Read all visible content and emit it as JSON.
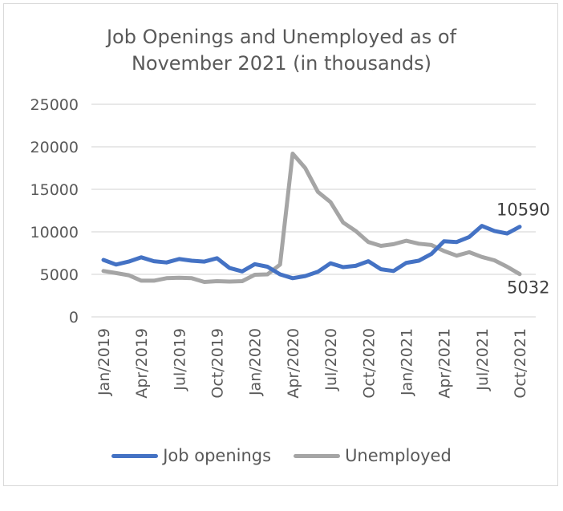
{
  "chart_data": {
    "type": "line",
    "title_line1": "Job Openings and Unemployed as of",
    "title_line2": "November 2021 (in thousands)",
    "xlabel": "",
    "ylabel": "",
    "ylim": [
      0,
      25000
    ],
    "yticks": [
      "0",
      "5000",
      "10000",
      "15000",
      "20000",
      "25000"
    ],
    "ytick_values": [
      0,
      5000,
      10000,
      15000,
      20000,
      25000
    ],
    "grid": true,
    "legend_position": "bottom",
    "x_tick_labels": [
      "Jan/2019",
      "Apr/2019",
      "Jul/2019",
      "Oct/2019",
      "Jan/2020",
      "Apr/2020",
      "Jul/2020",
      "Oct/2020",
      "Jan/2021",
      "Apr/2021",
      "Jul/2021",
      "Oct/2021"
    ],
    "x": [
      "Jan/2019",
      "Feb/2019",
      "Mar/2019",
      "Apr/2019",
      "May/2019",
      "Jun/2019",
      "Jul/2019",
      "Aug/2019",
      "Sep/2019",
      "Oct/2019",
      "Nov/2019",
      "Dec/2019",
      "Jan/2020",
      "Feb/2020",
      "Mar/2020",
      "Apr/2020",
      "May/2020",
      "Jun/2020",
      "Jul/2020",
      "Aug/2020",
      "Sep/2020",
      "Oct/2020",
      "Nov/2020",
      "Dec/2020",
      "Jan/2021",
      "Feb/2021",
      "Mar/2021",
      "Apr/2021",
      "May/2021",
      "Jun/2021",
      "Jul/2021",
      "Aug/2021",
      "Sep/2021",
      "Oct/2021"
    ],
    "series": [
      {
        "name": "Job openings",
        "color": "#4472c4",
        "values": [
          6700,
          6150,
          6500,
          7000,
          6550,
          6400,
          6800,
          6600,
          6500,
          6900,
          5750,
          5350,
          6200,
          5900,
          5000,
          4550,
          4800,
          5300,
          6300,
          5850,
          6000,
          6550,
          5600,
          5400,
          6350,
          6600,
          7400,
          8900,
          8800,
          9400,
          10700,
          10100,
          9800,
          10590
        ],
        "end_label": "10590"
      },
      {
        "name": "Unemployed",
        "color": "#a5a5a5",
        "values": [
          5400,
          5150,
          4900,
          4250,
          4250,
          4550,
          4600,
          4550,
          4100,
          4200,
          4150,
          4200,
          4950,
          5000,
          6150,
          19200,
          17500,
          14700,
          13500,
          11100,
          10100,
          8800,
          8350,
          8550,
          8950,
          8600,
          8450,
          7750,
          7200,
          7600,
          7050,
          6650,
          5900,
          5032
        ],
        "end_label": "5032"
      }
    ]
  }
}
